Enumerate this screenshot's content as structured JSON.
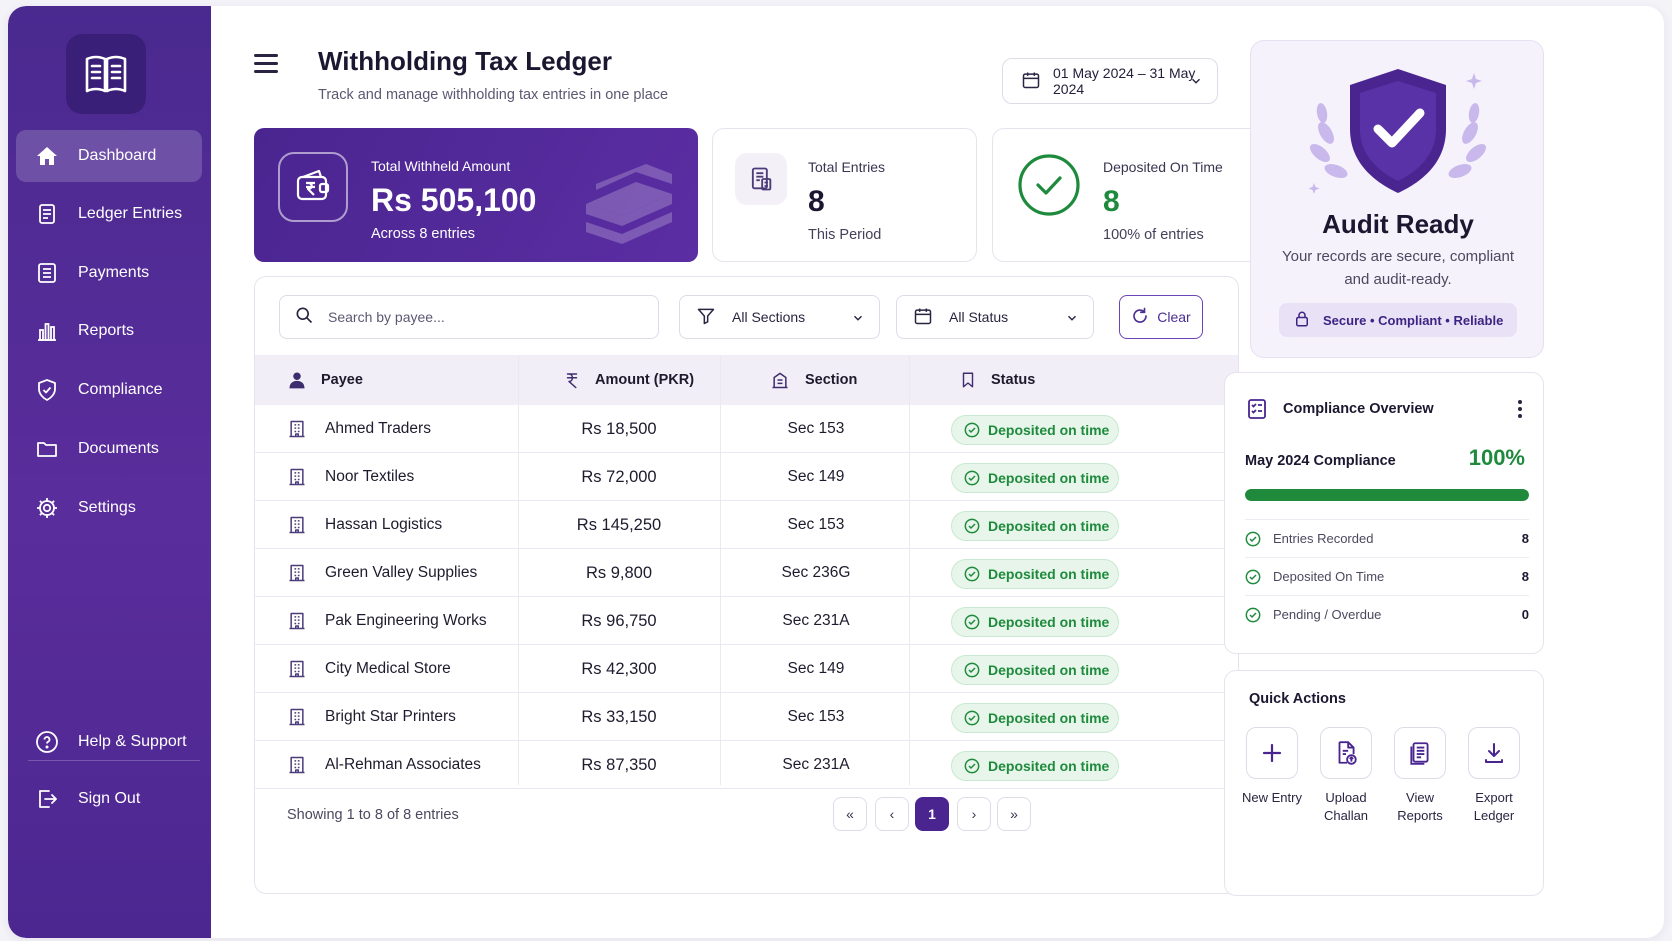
{
  "sidebar": {
    "items": [
      {
        "label": "Dashboard",
        "icon": "home-icon",
        "active": true
      },
      {
        "label": "Ledger Entries",
        "icon": "ledger-icon"
      },
      {
        "label": "Payments",
        "icon": "payments-icon"
      },
      {
        "label": "Reports",
        "icon": "reports-icon"
      },
      {
        "label": "Compliance",
        "icon": "shield-check-icon"
      },
      {
        "label": "Documents",
        "icon": "folder-icon"
      },
      {
        "label": "Settings",
        "icon": "gear-icon"
      }
    ],
    "help_label": "Help & Support",
    "signout_label": "Sign Out"
  },
  "header": {
    "title": "Withholding Tax Ledger",
    "subtitle": "Track and manage withholding tax entries in one place",
    "date_range": "01 May 2024 – 31 May 2024"
  },
  "stats": {
    "withheld": {
      "label": "Total Withheld Amount",
      "value": "Rs 505,100",
      "sub": "Across 8 entries"
    },
    "entries": {
      "label": "Total Entries",
      "value": "8",
      "sub": "This Period"
    },
    "ontime": {
      "label": "Deposited On Time",
      "value": "8",
      "sub": "100% of entries"
    }
  },
  "filters": {
    "search_placeholder": "Search by payee...",
    "sections": "All Sections",
    "status": "All Status",
    "clear": "Clear"
  },
  "table": {
    "headers": {
      "payee": "Payee",
      "amount": "Amount (PKR)",
      "section": "Section",
      "status": "Status"
    },
    "rows": [
      {
        "payee": "Ahmed Traders",
        "amount": "Rs 18,500",
        "section": "Sec 153",
        "status": "Deposited on time"
      },
      {
        "payee": "Noor Textiles",
        "amount": "Rs 72,000",
        "section": "Sec 149",
        "status": "Deposited on time"
      },
      {
        "payee": "Hassan Logistics",
        "amount": "Rs 145,250",
        "section": "Sec 153",
        "status": "Deposited on time"
      },
      {
        "payee": "Green Valley Supplies",
        "amount": "Rs 9,800",
        "section": "Sec 236G",
        "status": "Deposited on time"
      },
      {
        "payee": "Pak Engineering Works",
        "amount": "Rs 96,750",
        "section": "Sec 231A",
        "status": "Deposited on time"
      },
      {
        "payee": "City Medical Store",
        "amount": "Rs 42,300",
        "section": "Sec 149",
        "status": "Deposited on time"
      },
      {
        "payee": "Bright Star Printers",
        "amount": "Rs 33,150",
        "section": "Sec 153",
        "status": "Deposited on time"
      },
      {
        "payee": "Al-Rehman Associates",
        "amount": "Rs 87,350",
        "section": "Sec 231A",
        "status": "Deposited on time"
      }
    ],
    "showing": "Showing 1 to 8 of 8 entries",
    "pagination": {
      "first": "«",
      "prev": "‹",
      "current": "1",
      "next": "›",
      "last": "»"
    }
  },
  "audit": {
    "title": "Audit Ready",
    "description": "Your records are secure, compliant and audit-ready.",
    "tags": "Secure • Compliant • Reliable"
  },
  "overview": {
    "title": "Compliance Overview",
    "month_label": "May 2024 Compliance",
    "percent": "100%",
    "progress": 1.0,
    "items": [
      {
        "label": "Entries Recorded",
        "value": "8"
      },
      {
        "label": "Deposited On Time",
        "value": "8"
      },
      {
        "label": "Pending / Overdue",
        "value": "0"
      }
    ]
  },
  "quick_actions": {
    "title": "Quick Actions",
    "items": [
      {
        "line1": "New Entry",
        "line2": "",
        "icon": "plus-icon"
      },
      {
        "line1": "Upload",
        "line2": "Challan",
        "icon": "upload-document-icon"
      },
      {
        "line1": "View",
        "line2": "Reports",
        "icon": "report-document-icon"
      },
      {
        "line1": "Export",
        "line2": "Ledger",
        "icon": "download-icon"
      }
    ]
  },
  "colors": {
    "brand": "#4a2590",
    "success": "#1e8a3c",
    "sidebar": "#5a2d9c"
  }
}
